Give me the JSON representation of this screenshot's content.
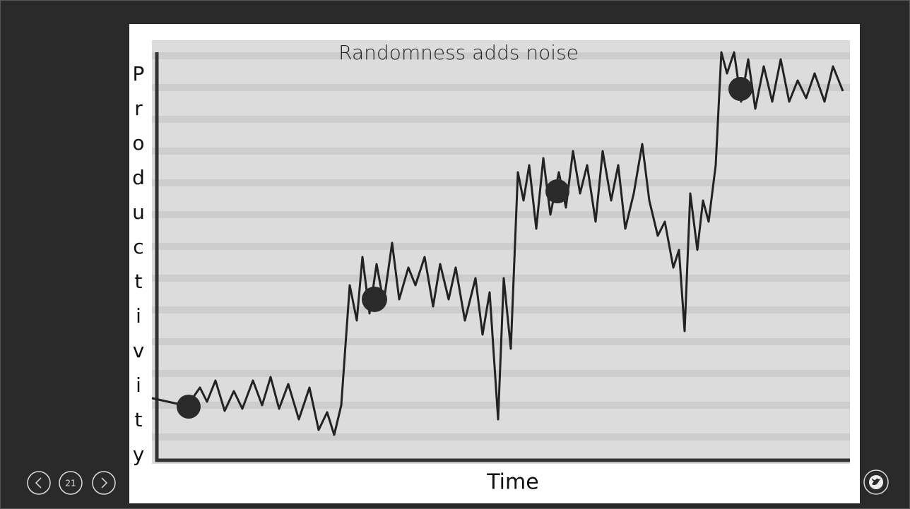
{
  "slide": {
    "title": "Randomness adds noise",
    "y_axis_label": [
      "P",
      "r",
      "o",
      "d",
      "u",
      "c",
      "t",
      "i",
      "v",
      "i",
      "t",
      "y"
    ],
    "x_axis_label": "Time"
  },
  "navigation": {
    "page_number": "21"
  }
}
